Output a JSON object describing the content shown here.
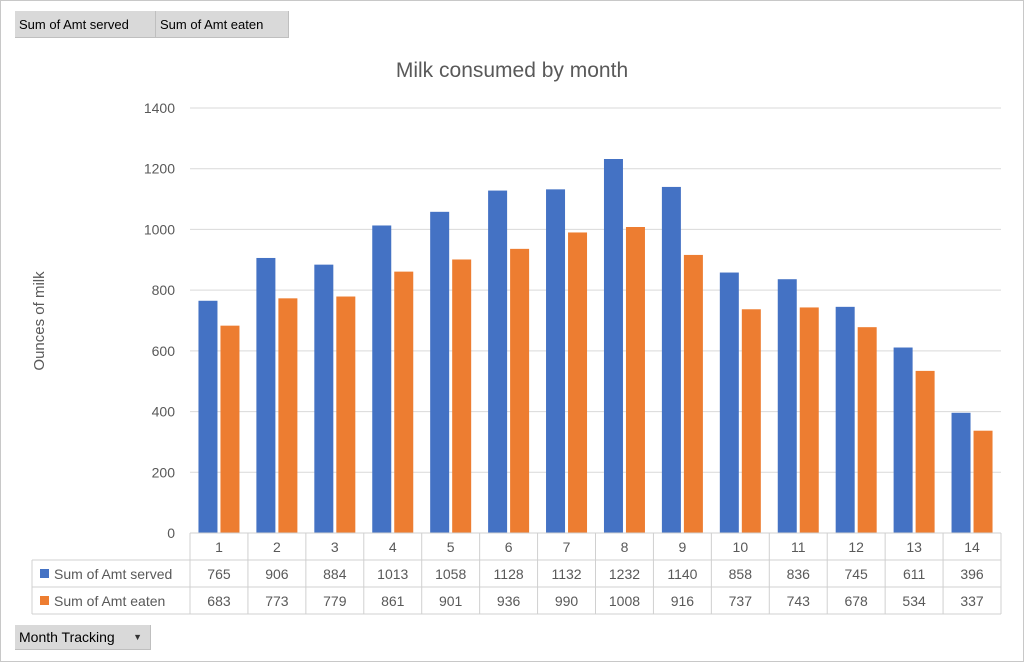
{
  "field_buttons": [
    "Sum of Amt served",
    "Sum of Amt eaten"
  ],
  "month_button": {
    "label": "Month Tracking",
    "icon": "dropdown-arrow-icon"
  },
  "chart_data": {
    "type": "bar",
    "title": "Milk consumed by month",
    "xlabel": "",
    "ylabel": "Ounces of milk",
    "ylim": [
      0,
      1400
    ],
    "yticks": [
      0,
      200,
      400,
      600,
      800,
      1000,
      1200,
      1400
    ],
    "grid": true,
    "legend": "data-table",
    "categories": [
      "1",
      "2",
      "3",
      "4",
      "5",
      "6",
      "7",
      "8",
      "9",
      "10",
      "11",
      "12",
      "13",
      "14"
    ],
    "series": [
      {
        "name": "Sum of Amt served",
        "color": "#4472c4",
        "values": [
          765,
          906,
          884,
          1013,
          1058,
          1128,
          1132,
          1232,
          1140,
          858,
          836,
          745,
          611,
          396
        ]
      },
      {
        "name": "Sum of Amt eaten",
        "color": "#ed7d31",
        "values": [
          683,
          773,
          779,
          861,
          901,
          936,
          990,
          1008,
          916,
          737,
          743,
          678,
          534,
          337
        ]
      }
    ]
  }
}
